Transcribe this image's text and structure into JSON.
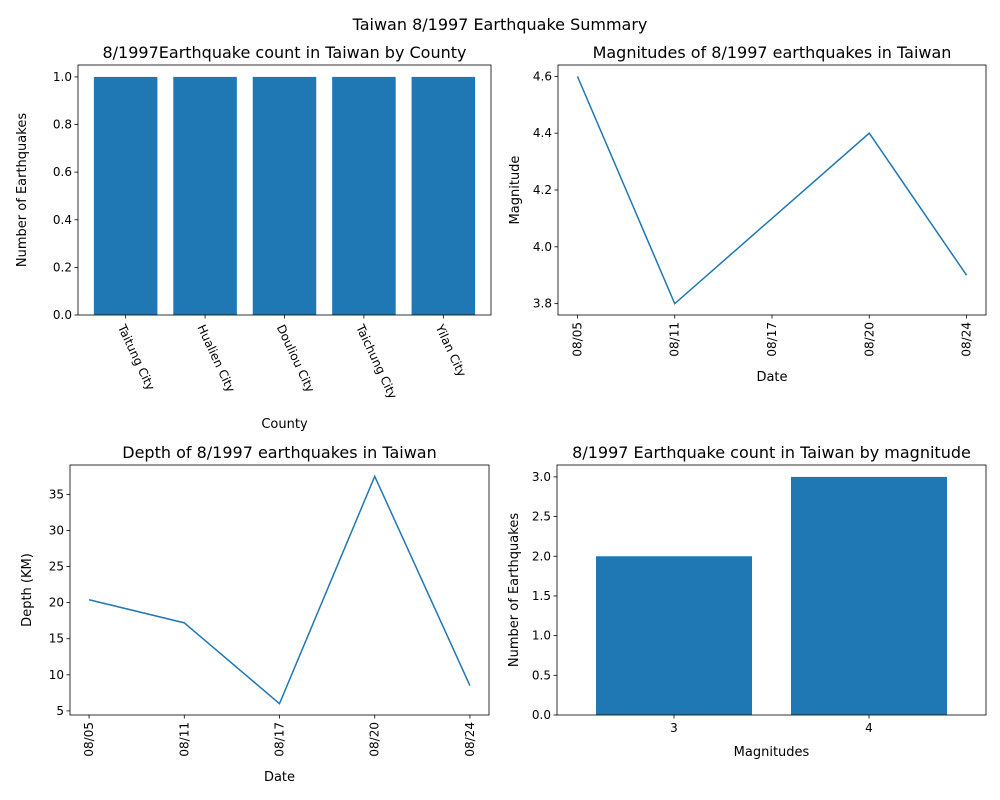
{
  "figure": {
    "suptitle": "Taiwan 8/1997 Earthquake Summary"
  },
  "colors": {
    "series": "#1f77b4"
  },
  "chart_data": [
    {
      "id": "county",
      "type": "bar",
      "title": "8/1997Earthquake count in Taiwan by County",
      "xlabel": "County",
      "ylabel": "Number of Earthquakes",
      "categories": [
        "Taitung City",
        "Hualien City",
        "Douliou City",
        "Taichung City",
        "Yilan City"
      ],
      "values": [
        1,
        1,
        1,
        1,
        1
      ],
      "ylim": [
        0,
        1.05
      ],
      "yticks": [
        0.0,
        0.2,
        0.4,
        0.6,
        0.8,
        1.0
      ],
      "ytick_labels": [
        "0.0",
        "0.2",
        "0.4",
        "0.6",
        "0.8",
        "1.0"
      ],
      "grid": false
    },
    {
      "id": "magnitude-line",
      "type": "line",
      "title": "Magnitudes of 8/1997 earthquakes in Taiwan",
      "xlabel": "Date",
      "ylabel": "Magnitude",
      "x": [
        "08/05",
        "08/11",
        "08/17",
        "08/20",
        "08/24"
      ],
      "values": [
        4.6,
        3.8,
        4.1,
        4.4,
        3.9
      ],
      "ylim": [
        3.76,
        4.64
      ],
      "yticks": [
        3.8,
        4.0,
        4.2,
        4.4,
        4.6
      ],
      "ytick_labels": [
        "3.8",
        "4.0",
        "4.2",
        "4.4",
        "4.6"
      ],
      "grid": false
    },
    {
      "id": "depth-line",
      "type": "line",
      "title": "Depth of 8/1997 earthquakes in Taiwan",
      "xlabel": "Date",
      "ylabel": "Depth (KM)",
      "x": [
        "08/05",
        "08/11",
        "08/17",
        "08/20",
        "08/24"
      ],
      "values": [
        20.4,
        17.2,
        6.0,
        37.5,
        8.5
      ],
      "ylim": [
        4.43,
        39.07
      ],
      "yticks": [
        5,
        10,
        15,
        20,
        25,
        30,
        35
      ],
      "ytick_labels": [
        "5",
        "10",
        "15",
        "20",
        "25",
        "30",
        "35"
      ],
      "grid": false
    },
    {
      "id": "magnitude-count",
      "type": "bar",
      "title": "8/1997 Earthquake count in Taiwan by magnitude",
      "xlabel": "Magnitudes",
      "ylabel": "Number of Earthquakes",
      "categories": [
        "3",
        "4"
      ],
      "values": [
        2,
        3
      ],
      "ylim": [
        0,
        3.15
      ],
      "yticks": [
        0.0,
        0.5,
        1.0,
        1.5,
        2.0,
        2.5,
        3.0
      ],
      "ytick_labels": [
        "0.0",
        "0.5",
        "1.0",
        "1.5",
        "2.0",
        "2.5",
        "3.0"
      ],
      "grid": false
    }
  ]
}
